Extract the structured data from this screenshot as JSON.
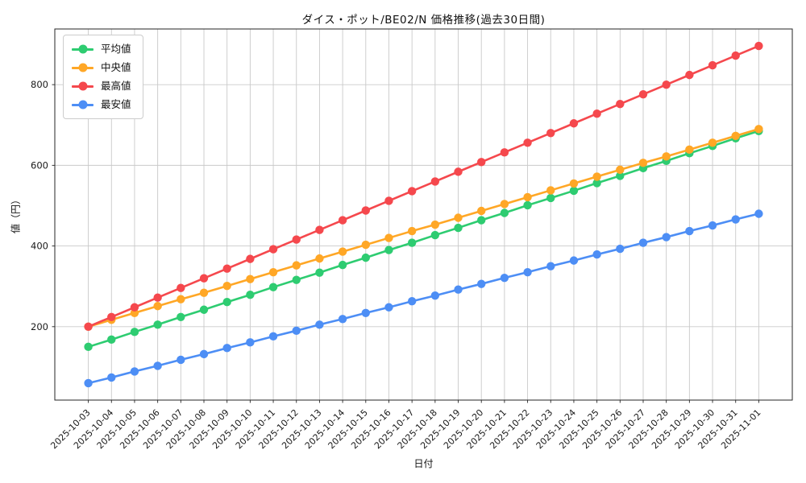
{
  "chart_data": {
    "type": "line",
    "title": "ダイス・ポット/BE02/N 価格推移(過去30日間)",
    "xlabel": "日付",
    "ylabel": "値（円）",
    "grid": true,
    "legend_position": "upper left",
    "y_ticks": [
      200,
      400,
      600,
      800
    ],
    "ylim": [
      18,
      938
    ],
    "x": [
      "2025-10-03",
      "2025-10-04",
      "2025-10-05",
      "2025-10-06",
      "2025-10-07",
      "2025-10-08",
      "2025-10-09",
      "2025-10-10",
      "2025-10-11",
      "2025-10-12",
      "2025-10-13",
      "2025-10-14",
      "2025-10-15",
      "2025-10-16",
      "2025-10-17",
      "2025-10-18",
      "2025-10-19",
      "2025-10-20",
      "2025-10-21",
      "2025-10-22",
      "2025-10-23",
      "2025-10-24",
      "2025-10-25",
      "2025-10-26",
      "2025-10-27",
      "2025-10-28",
      "2025-10-29",
      "2025-10-30",
      "2025-10-31",
      "2025-11-01"
    ],
    "series": [
      {
        "id": "average",
        "name": "平均値",
        "color": "#2ecc71",
        "values": [
          150,
          168,
          187,
          205,
          224,
          242,
          261,
          279,
          298,
          316,
          334,
          353,
          371,
          390,
          408,
          427,
          445,
          464,
          482,
          501,
          519,
          537,
          556,
          574,
          593,
          611,
          630,
          648,
          667,
          685
        ]
      },
      {
        "id": "median",
        "name": "中央値",
        "color": "#ffa726",
        "values": [
          200,
          217,
          234,
          251,
          268,
          284,
          301,
          318,
          335,
          352,
          369,
          386,
          403,
          420,
          437,
          453,
          470,
          487,
          504,
          521,
          538,
          555,
          572,
          589,
          606,
          622,
          639,
          656,
          673,
          690
        ]
      },
      {
        "id": "max",
        "name": "最高値",
        "color": "#f5484d",
        "values": [
          200,
          224,
          248,
          272,
          296,
          320,
          344,
          368,
          392,
          416,
          440,
          464,
          488,
          512,
          536,
          560,
          584,
          608,
          632,
          656,
          680,
          704,
          728,
          752,
          776,
          800,
          824,
          848,
          872,
          896
        ]
      },
      {
        "id": "min",
        "name": "最安値",
        "color": "#4d8ef5",
        "values": [
          60,
          74,
          89,
          103,
          118,
          132,
          147,
          161,
          176,
          190,
          205,
          219,
          234,
          248,
          263,
          277,
          292,
          306,
          321,
          335,
          350,
          364,
          379,
          393,
          408,
          422,
          437,
          451,
          466,
          480
        ]
      }
    ]
  }
}
